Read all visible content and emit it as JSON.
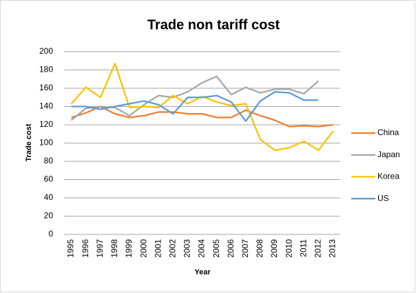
{
  "chart_data": {
    "type": "line",
    "title": "Trade non tariff cost",
    "x_label": "Year",
    "y_label": "Trade cost",
    "categories": [
      "1995",
      "1996",
      "1997",
      "1998",
      "1999",
      "2000",
      "2001",
      "2002",
      "2003",
      "2004",
      "2005",
      "2006",
      "2007",
      "2008",
      "2009",
      "2010",
      "2011",
      "2012",
      "2013"
    ],
    "series": [
      {
        "name": "China",
        "color": "#ed7d31",
        "values": [
          128,
          133,
          140,
          132,
          128,
          130,
          134,
          134,
          132,
          132,
          128,
          128,
          136,
          130,
          125,
          118,
          119,
          118,
          120
        ]
      },
      {
        "name": "Japan",
        "color": "#a5a5a5",
        "values": [
          125,
          138,
          140,
          139,
          130,
          142,
          152,
          150,
          156,
          166,
          173,
          153,
          161,
          155,
          159,
          159,
          154,
          168,
          null
        ]
      },
      {
        "name": "Korea",
        "color": "#ffc000",
        "values": [
          143,
          161,
          150,
          187,
          139,
          140,
          139,
          152,
          143,
          151,
          145,
          141,
          143,
          104,
          92,
          95,
          102,
          92,
          113
        ]
      },
      {
        "name": "US",
        "color": "#5b9bd5",
        "values": [
          140,
          140,
          137,
          140,
          143,
          146,
          142,
          132,
          150,
          150,
          152,
          145,
          124,
          146,
          156,
          155,
          147,
          147,
          null
        ]
      }
    ],
    "ylim": [
      0,
      200
    ],
    "yticks": [
      0,
      20,
      40,
      60,
      80,
      100,
      120,
      140,
      160,
      180,
      200
    ],
    "grid": true,
    "legend": "right"
  }
}
